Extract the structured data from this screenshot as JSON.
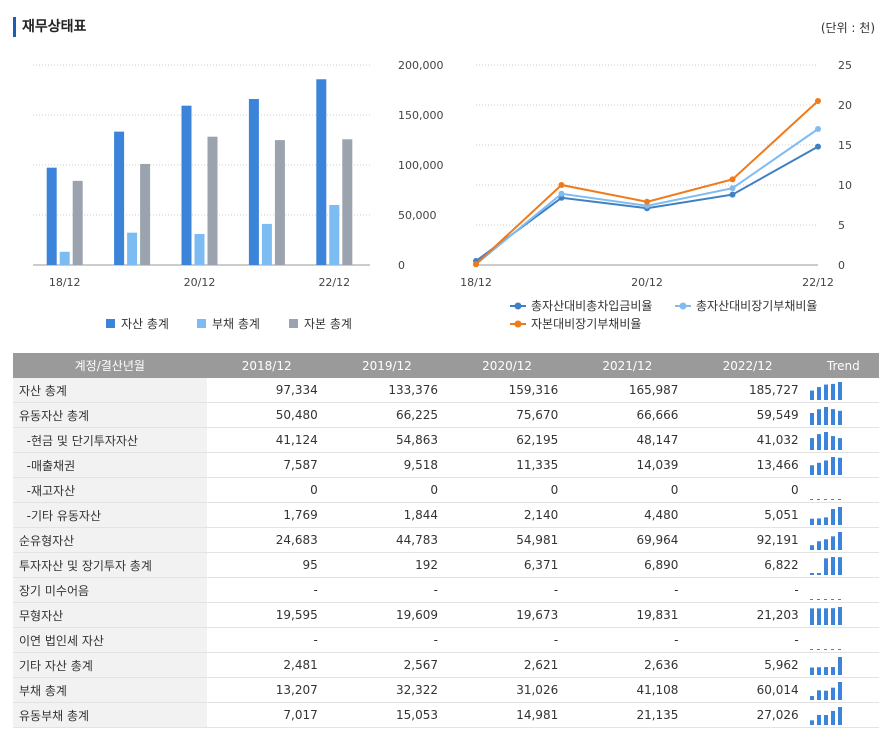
{
  "header": {
    "title": "재무상태표",
    "unit": "(단위 : 천)"
  },
  "chart_data": [
    {
      "type": "bar",
      "categories": [
        "18/12",
        "19/12",
        "20/12",
        "21/12",
        "22/12"
      ],
      "x_tick_labels": [
        "18/12",
        "",
        "20/12",
        "",
        "22/12"
      ],
      "y_ticks": [
        "200,000",
        "150,000",
        "100,000",
        "50,000",
        "0"
      ],
      "ylim": [
        0,
        200000
      ],
      "series": [
        {
          "name": "자산 총계",
          "color": "#3b84d9",
          "values": [
            97334,
            133376,
            159316,
            165987,
            185727
          ]
        },
        {
          "name": "부채 총계",
          "color": "#7cbcf2",
          "values": [
            13207,
            32322,
            31026,
            41108,
            60014
          ]
        },
        {
          "name": "자본 총계",
          "color": "#9ba3ae",
          "values": [
            84127,
            101054,
            128290,
            124879,
            125713
          ]
        }
      ],
      "legend_position": "bottom",
      "grid": true
    },
    {
      "type": "line",
      "categories": [
        "18/12",
        "19/12",
        "20/12",
        "21/12",
        "22/12"
      ],
      "x_tick_labels": [
        "18/12",
        "",
        "20/12",
        "",
        "22/12"
      ],
      "y_ticks": [
        "25",
        "20",
        "15",
        "10",
        "5",
        "0"
      ],
      "ylim": [
        0,
        25
      ],
      "series": [
        {
          "name": "총자산대비총차입금비율",
          "color": "#3f7fc4",
          "values": [
            0.5,
            8.4,
            7.1,
            8.8,
            14.8
          ]
        },
        {
          "name": "총자산대비장기부채비율",
          "color": "#80bcf0",
          "values": [
            0.1,
            8.9,
            7.4,
            9.6,
            17.0
          ]
        },
        {
          "name": "자본대비장기부채비율",
          "color": "#ef7a1a",
          "values": [
            0.1,
            10.0,
            7.9,
            10.7,
            20.5
          ]
        }
      ],
      "legend_position": "bottom",
      "grid": true
    }
  ],
  "table": {
    "headers": [
      "계정/결산년월",
      "2018/12",
      "2019/12",
      "2020/12",
      "2021/12",
      "2022/12",
      "Trend"
    ],
    "rows": [
      {
        "label": "자산 총계",
        "values": [
          "97,334",
          "133,376",
          "159,316",
          "165,987",
          "185,727"
        ]
      },
      {
        "label": "유동자산 총계",
        "values": [
          "50,480",
          "66,225",
          "75,670",
          "66,666",
          "59,549"
        ]
      },
      {
        "label": "  -현금 및 단기투자자산",
        "values": [
          "41,124",
          "54,863",
          "62,195",
          "48,147",
          "41,032"
        ]
      },
      {
        "label": "  -매출채권",
        "values": [
          "7,587",
          "9,518",
          "11,335",
          "14,039",
          "13,466"
        ]
      },
      {
        "label": "  -재고자산",
        "values": [
          "0",
          "0",
          "0",
          "0",
          "0"
        ]
      },
      {
        "label": "  -기타 유동자산",
        "values": [
          "1,769",
          "1,844",
          "2,140",
          "4,480",
          "5,051"
        ]
      },
      {
        "label": "순유형자산",
        "values": [
          "24,683",
          "44,783",
          "54,981",
          "69,964",
          "92,191"
        ]
      },
      {
        "label": "투자자산 및 장기투자 총계",
        "values": [
          "95",
          "192",
          "6,371",
          "6,890",
          "6,822"
        ]
      },
      {
        "label": "장기 미수어음",
        "values": [
          "-",
          "-",
          "-",
          "-",
          "-"
        ]
      },
      {
        "label": "무형자산",
        "values": [
          "19,595",
          "19,609",
          "19,673",
          "19,831",
          "21,203"
        ]
      },
      {
        "label": "이연 법인세 자산",
        "values": [
          "-",
          "-",
          "-",
          "-",
          "-"
        ]
      },
      {
        "label": "기타 자산 총계",
        "values": [
          "2,481",
          "2,567",
          "2,621",
          "2,636",
          "5,962"
        ]
      },
      {
        "label": "부채 총계",
        "values": [
          "13,207",
          "32,322",
          "31,026",
          "41,108",
          "60,014"
        ]
      },
      {
        "label": "유동부채 총계",
        "values": [
          "7,017",
          "15,053",
          "14,981",
          "21,135",
          "27,026"
        ]
      }
    ]
  }
}
